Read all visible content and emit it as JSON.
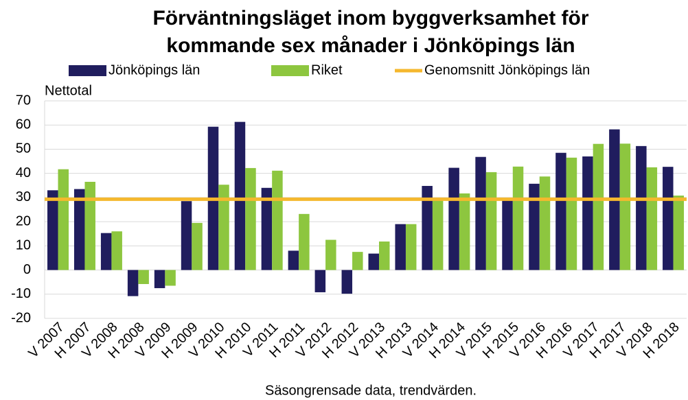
{
  "chart_data": {
    "type": "bar",
    "title": [
      "Förväntningsläget inom byggverksamhet för",
      "kommande sex månader i Jönköpings län"
    ],
    "y_label": "Nettotal",
    "x_label": "Säsongrensade data, trendvärden.",
    "categories": [
      "V 2007",
      "H 2007",
      "V 2008",
      "H 2008",
      "V 2009",
      "H 2009",
      "V 2010",
      "H 2010",
      "V 2011",
      "H 2011",
      "V 2012",
      "H 2012",
      "V 2013",
      "H 2013",
      "V 2014",
      "H 2014",
      "V 2015",
      "H 2015",
      "V 2016",
      "H 2016",
      "V 2017",
      "H 2017",
      "V 2018",
      "H 2018"
    ],
    "series": [
      {
        "name": "Jönköpings län",
        "type": "bar",
        "color": "#201d5e",
        "values": [
          33,
          33.5,
          15.3,
          -10.8,
          -7.5,
          28.5,
          59.3,
          61.3,
          34,
          8,
          -9.2,
          -9.8,
          6.8,
          19,
          34.8,
          42.3,
          46.8,
          29,
          35.7,
          48.5,
          47,
          58.2,
          51.3,
          42.7
        ]
      },
      {
        "name": "Riket",
        "type": "bar",
        "color": "#8dc63f",
        "values": [
          41.7,
          36.5,
          16,
          -5.8,
          -6.5,
          19.5,
          35.3,
          42.2,
          41.1,
          23.2,
          12.5,
          7.5,
          11.8,
          19,
          29.8,
          31.7,
          40.5,
          42.8,
          38.7,
          46.5,
          52.2,
          52.3,
          42.5,
          30.8
        ]
      },
      {
        "name": "Genomsnitt Jönköpings län",
        "type": "line",
        "color": "#f5b82e",
        "values": [
          29.3,
          29.3,
          29.3,
          29.3,
          29.3,
          29.3,
          29.3,
          29.3,
          29.3,
          29.3,
          29.3,
          29.3,
          29.3,
          29.3,
          29.3,
          29.3,
          29.3,
          29.3,
          29.3,
          29.3,
          29.3,
          29.3,
          29.3,
          29.3
        ]
      }
    ],
    "ylim": [
      -20,
      70
    ],
    "yticks": [
      -20,
      -10,
      0,
      10,
      20,
      30,
      40,
      50,
      60,
      70
    ],
    "grid": true,
    "legend": "top"
  }
}
